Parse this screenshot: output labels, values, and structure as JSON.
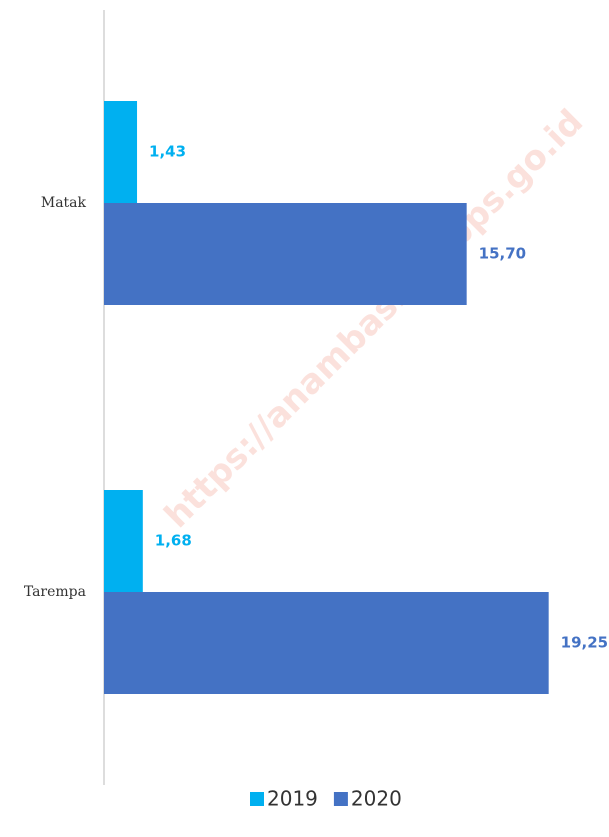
{
  "chart_data": {
    "type": "hbar",
    "categories": [
      "Matak",
      "Tarempa"
    ],
    "series": [
      {
        "name": "2019",
        "color": "#00b0f0",
        "values": [
          1.43,
          1.68
        ],
        "value_labels": [
          "1,43",
          "1,68"
        ]
      },
      {
        "name": "2020",
        "color": "#4472c4",
        "values": [
          15.7,
          19.25
        ],
        "value_labels": [
          "15,70",
          "19,25"
        ]
      }
    ],
    "xlim": [
      0,
      20
    ],
    "watermark": "https://anambaskab.bps.go.id"
  }
}
